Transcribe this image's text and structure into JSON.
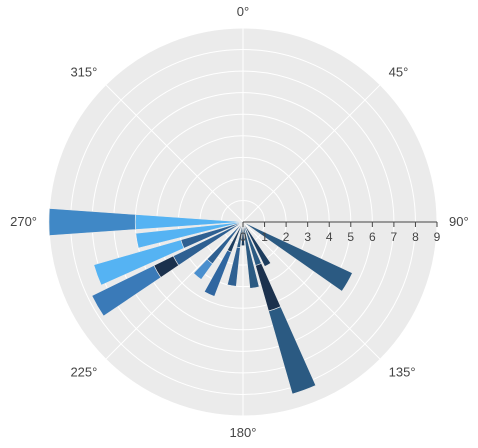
{
  "chart_data": {
    "type": "barpolar",
    "direction": "clockwise",
    "rotation_start": "north",
    "angular_axis": {
      "tick_labels": [
        "0°",
        "45°",
        "90°",
        "135°",
        "180°",
        "225°",
        "270°",
        "315°"
      ],
      "tick_angles": [
        0,
        45,
        90,
        135,
        180,
        225,
        270,
        315
      ]
    },
    "radial_axis": {
      "range": [
        0,
        9
      ],
      "tick_labels": [
        "0",
        "1",
        "2",
        "3",
        "4",
        "5",
        "6",
        "7",
        "8",
        "9"
      ],
      "tick_values": [
        0,
        1,
        2,
        3,
        4,
        5,
        6,
        7,
        8,
        9
      ],
      "angle": 90
    },
    "grid": true,
    "background": "#ebebeb",
    "bars": [
      {
        "angle": 120,
        "width": 10,
        "base": 0,
        "value": 5.6,
        "color": "#2b5a82"
      },
      {
        "angle": 150,
        "width": 8,
        "base": 0,
        "value": 2.3,
        "color": "#1d3d5e"
      },
      {
        "angle": 160,
        "width": 8,
        "base": 0,
        "value": 2.1,
        "color": "#2b5a82"
      },
      {
        "angle": 160,
        "width": 8,
        "base": 2.1,
        "value": 2.2,
        "color": "#1b314d"
      },
      {
        "angle": 160,
        "width": 8,
        "base": 4.3,
        "value": 4.0,
        "color": "#2b5a82"
      },
      {
        "angle": 170,
        "width": 8,
        "base": 0,
        "value": 3.1,
        "color": "#2b5a82"
      },
      {
        "angle": 180,
        "width": 8,
        "base": 0,
        "value": 1.1,
        "color": "#1d3d5e"
      },
      {
        "angle": 190,
        "width": 8,
        "base": 0,
        "value": 1.2,
        "color": "#2b5a82"
      },
      {
        "angle": 190,
        "width": 8,
        "base": 1.2,
        "value": 1.8,
        "color": "#2e6092"
      },
      {
        "angle": 205,
        "width": 8,
        "base": 0,
        "value": 1.5,
        "color": "#1d3d5e"
      },
      {
        "angle": 205,
        "width": 8,
        "base": 1.5,
        "value": 2.2,
        "color": "#2f66a0"
      },
      {
        "angle": 220,
        "width": 8,
        "base": 0,
        "value": 2.4,
        "color": "#2e6092"
      },
      {
        "angle": 220,
        "width": 8,
        "base": 2.4,
        "value": 0.9,
        "color": "#4a8fce"
      },
      {
        "angle": 240,
        "width": 8,
        "base": 0,
        "value": 3.6,
        "color": "#2e6092"
      },
      {
        "angle": 240,
        "width": 8,
        "base": 3.6,
        "value": 1.0,
        "color": "#1b314d"
      },
      {
        "angle": 240,
        "width": 8,
        "base": 4.6,
        "value": 3.2,
        "color": "#3a7ab8"
      },
      {
        "angle": 250,
        "width": 8,
        "base": 0,
        "value": 3.0,
        "color": "#2e6092"
      },
      {
        "angle": 250,
        "width": 8,
        "base": 3.0,
        "value": 4.2,
        "color": "#55b3f3"
      },
      {
        "angle": 260,
        "width": 8,
        "base": 0,
        "value": 5.0,
        "color": "#55b3f3"
      },
      {
        "angle": 270,
        "width": 8,
        "base": 0,
        "value": 5.0,
        "color": "#55b3f3"
      },
      {
        "angle": 270,
        "width": 8,
        "base": 5.0,
        "value": 4.0,
        "color": "#4088c6"
      }
    ]
  }
}
